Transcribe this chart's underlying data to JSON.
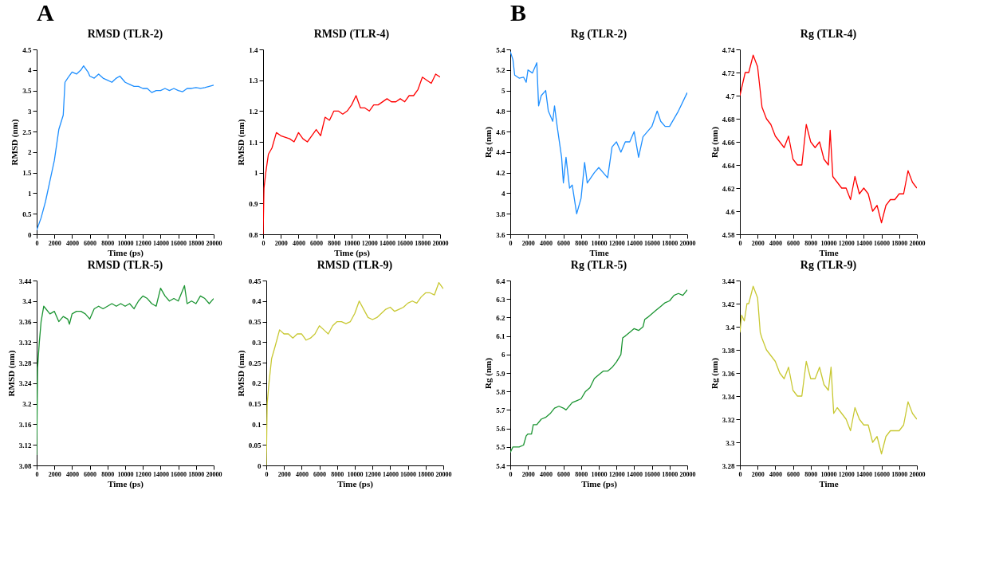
{
  "chart_data": [
    {
      "type": "line",
      "title": "RMSD (TLR-2)",
      "xlabel": "Time (ps)",
      "ylabel": "RMSD (nm)",
      "annotations": [
        "A"
      ],
      "grid": false,
      "xlim": [
        0,
        20000
      ],
      "xticks": [
        0,
        2000,
        4000,
        6000,
        8000,
        10000,
        12000,
        14000,
        16000,
        18000,
        20000
      ],
      "ylim": [
        0,
        4.5
      ],
      "yticks": [
        0,
        0.5,
        1,
        1.5,
        2,
        2.5,
        3,
        3.5,
        4,
        4.5
      ],
      "x": [
        0,
        500,
        1000,
        1500,
        2000,
        2500,
        3000,
        3200,
        3500,
        4000,
        4500,
        5000,
        5300,
        5800,
        6000,
        6500,
        7000,
        7500,
        8000,
        8500,
        9000,
        9400,
        10000,
        10500,
        11000,
        11500,
        12000,
        12500,
        13000,
        13500,
        14000,
        14500,
        15000,
        15500,
        16000,
        16500,
        17000,
        17500,
        18000,
        18500,
        19000,
        19500,
        20000
      ],
      "series": [
        {
          "color": "#1e8fff",
          "values": [
            0.1,
            0.4,
            0.8,
            1.3,
            1.8,
            2.55,
            2.9,
            3.7,
            3.8,
            3.95,
            3.9,
            4.0,
            4.1,
            3.95,
            3.85,
            3.8,
            3.9,
            3.8,
            3.75,
            3.7,
            3.8,
            3.85,
            3.7,
            3.65,
            3.6,
            3.6,
            3.55,
            3.55,
            3.45,
            3.5,
            3.5,
            3.55,
            3.5,
            3.55,
            3.5,
            3.47,
            3.55,
            3.55,
            3.57,
            3.55,
            3.57,
            3.6,
            3.63
          ]
        }
      ]
    },
    {
      "type": "line",
      "title": "RMSD (TLR-4)",
      "xlabel": "Time (ps)",
      "ylabel": "RMSD (nm)",
      "grid": false,
      "xlim": [
        0,
        20000
      ],
      "xticks": [
        0,
        2000,
        4000,
        6000,
        8000,
        10000,
        12000,
        14000,
        16000,
        18000,
        20000
      ],
      "ylim": [
        0.8,
        1.4
      ],
      "yticks": [
        0.8,
        0.9,
        1,
        1.1,
        1.2,
        1.3,
        1.4
      ],
      "x": [
        0,
        100,
        300,
        600,
        1000,
        1500,
        2000,
        3000,
        3500,
        4000,
        4500,
        5000,
        5500,
        6000,
        6500,
        7000,
        7500,
        8000,
        8500,
        9000,
        9500,
        10000,
        10500,
        11000,
        11500,
        12000,
        12500,
        13000,
        14000,
        14500,
        15000,
        15500,
        16000,
        16500,
        17000,
        17500,
        18000,
        18500,
        19000,
        19500,
        20000
      ],
      "series": [
        {
          "color": "#ff0000",
          "values": [
            0.8,
            0.95,
            1.0,
            1.06,
            1.08,
            1.13,
            1.12,
            1.11,
            1.1,
            1.13,
            1.11,
            1.1,
            1.12,
            1.14,
            1.12,
            1.18,
            1.17,
            1.2,
            1.2,
            1.19,
            1.2,
            1.22,
            1.25,
            1.21,
            1.21,
            1.2,
            1.22,
            1.22,
            1.24,
            1.23,
            1.23,
            1.24,
            1.23,
            1.25,
            1.25,
            1.27,
            1.31,
            1.3,
            1.29,
            1.32,
            1.31
          ]
        }
      ]
    },
    {
      "type": "line",
      "title": "Rg (TLR-2)",
      "xlabel": "Time",
      "ylabel": "Rg (nm)",
      "annotations": [
        "B"
      ],
      "grid": false,
      "xlim": [
        0,
        20000
      ],
      "xticks": [
        0,
        2000,
        4000,
        6000,
        8000,
        10000,
        12000,
        14000,
        16000,
        18000,
        20000
      ],
      "ylim": [
        3.6,
        5.4
      ],
      "yticks": [
        3.6,
        3.8,
        4,
        4.2,
        4.4,
        4.6,
        4.8,
        5,
        5.2,
        5.4
      ],
      "x": [
        0,
        300,
        500,
        1000,
        1500,
        1800,
        2000,
        2500,
        3000,
        3200,
        3500,
        4000,
        4300,
        4800,
        5000,
        5300,
        5800,
        6000,
        6300,
        6700,
        7000,
        7500,
        8000,
        8400,
        8700,
        9500,
        10000,
        10500,
        11000,
        11500,
        12000,
        12500,
        13000,
        13500,
        14000,
        14500,
        15000,
        16000,
        16600,
        17000,
        17500,
        18000,
        19000,
        20000
      ],
      "series": [
        {
          "color": "#1e8fff",
          "values": [
            5.38,
            5.3,
            5.15,
            5.12,
            5.13,
            5.08,
            5.2,
            5.17,
            5.27,
            4.85,
            4.95,
            5.0,
            4.8,
            4.7,
            4.85,
            4.65,
            4.35,
            4.1,
            4.35,
            4.05,
            4.08,
            3.8,
            3.95,
            4.3,
            4.1,
            4.2,
            4.25,
            4.2,
            4.15,
            4.45,
            4.5,
            4.4,
            4.5,
            4.5,
            4.6,
            4.35,
            4.55,
            4.65,
            4.8,
            4.7,
            4.65,
            4.65,
            4.8,
            4.98
          ]
        }
      ]
    },
    {
      "type": "line",
      "title": "Rg (TLR-4)",
      "xlabel": "Time",
      "ylabel": "Rg (nm)",
      "grid": false,
      "xlim": [
        0,
        20000
      ],
      "xticks": [
        0,
        2000,
        4000,
        6000,
        8000,
        10000,
        12000,
        14000,
        16000,
        18000,
        20000
      ],
      "ylim": [
        4.58,
        4.74
      ],
      "yticks": [
        4.58,
        4.6,
        4.62,
        4.64,
        4.66,
        4.68,
        4.7,
        4.72,
        4.74
      ],
      "x": [
        0,
        300,
        600,
        1000,
        1500,
        2000,
        2500,
        3000,
        3500,
        4000,
        4500,
        5000,
        5500,
        6000,
        6500,
        7000,
        7500,
        8000,
        8500,
        9000,
        9500,
        10000,
        10200,
        10500,
        11000,
        11500,
        12000,
        12500,
        13000,
        13500,
        14000,
        14500,
        15000,
        15500,
        16000,
        16500,
        17000,
        17500,
        18000,
        18500,
        19000,
        19500,
        20000
      ],
      "series": [
        {
          "color": "#ff0000",
          "values": [
            4.7,
            4.71,
            4.72,
            4.72,
            4.735,
            4.725,
            4.69,
            4.68,
            4.675,
            4.665,
            4.66,
            4.655,
            4.665,
            4.645,
            4.64,
            4.64,
            4.675,
            4.66,
            4.655,
            4.66,
            4.645,
            4.64,
            4.67,
            4.63,
            4.625,
            4.62,
            4.62,
            4.61,
            4.63,
            4.615,
            4.62,
            4.615,
            4.6,
            4.605,
            4.59,
            4.605,
            4.61,
            4.61,
            4.615,
            4.615,
            4.635,
            4.625,
            4.62
          ]
        }
      ]
    },
    {
      "type": "line",
      "title": "RMSD (TLR-5)",
      "xlabel": "Time (ps)",
      "ylabel": "RMSD (nm)",
      "grid": false,
      "xlim": [
        0,
        20000
      ],
      "xticks": [
        0,
        2000,
        4000,
        6000,
        8000,
        10000,
        12000,
        14000,
        16000,
        18000,
        20000
      ],
      "ylim": [
        3.08,
        3.44
      ],
      "yticks": [
        3.08,
        3.12,
        3.16,
        3.2,
        3.24,
        3.28,
        3.32,
        3.36,
        3.4,
        3.44
      ],
      "x": [
        0,
        100,
        300,
        500,
        800,
        1500,
        2000,
        2500,
        3000,
        3500,
        3700,
        4000,
        4500,
        5000,
        5500,
        6000,
        6500,
        7000,
        7500,
        8000,
        8500,
        9000,
        9500,
        10000,
        10500,
        11000,
        11500,
        12000,
        12500,
        13000,
        13500,
        14000,
        14500,
        15000,
        15500,
        16000,
        16700,
        17000,
        17500,
        18000,
        18500,
        19000,
        19500,
        20000
      ],
      "series": [
        {
          "color": "#1a9431",
          "values": [
            3.1,
            3.27,
            3.32,
            3.36,
            3.39,
            3.375,
            3.38,
            3.36,
            3.37,
            3.365,
            3.355,
            3.375,
            3.38,
            3.38,
            3.375,
            3.365,
            3.385,
            3.39,
            3.385,
            3.39,
            3.395,
            3.39,
            3.395,
            3.39,
            3.395,
            3.385,
            3.4,
            3.41,
            3.405,
            3.395,
            3.39,
            3.425,
            3.41,
            3.4,
            3.405,
            3.4,
            3.43,
            3.395,
            3.4,
            3.395,
            3.41,
            3.405,
            3.395,
            3.405
          ]
        }
      ]
    },
    {
      "type": "line",
      "title": "RMSD (TLR-9)",
      "xlabel": "Time (ps)",
      "ylabel": "RMSD (nm)",
      "grid": false,
      "xlim": [
        0,
        20000
      ],
      "xticks": [
        0,
        2000,
        4000,
        6000,
        8000,
        10000,
        12000,
        14000,
        16000,
        18000,
        20000
      ],
      "ylim": [
        0,
        0.45
      ],
      "yticks": [
        0,
        0.05,
        0.1,
        0.15,
        0.2,
        0.25,
        0.3,
        0.35,
        0.4,
        0.45
      ],
      "x": [
        0,
        100,
        300,
        600,
        1000,
        1500,
        2000,
        2500,
        3000,
        3500,
        4000,
        4500,
        5000,
        5500,
        6000,
        6500,
        7000,
        7500,
        8000,
        8500,
        9000,
        9500,
        10000,
        10500,
        11000,
        11500,
        12000,
        12500,
        13000,
        13500,
        14000,
        14500,
        15000,
        15500,
        16000,
        16500,
        17000,
        17500,
        18000,
        18500,
        19000,
        19500,
        20000
      ],
      "series": [
        {
          "color": "#c8c832",
          "values": [
            0,
            0.15,
            0.2,
            0.26,
            0.29,
            0.33,
            0.32,
            0.32,
            0.31,
            0.32,
            0.32,
            0.305,
            0.31,
            0.32,
            0.34,
            0.33,
            0.32,
            0.34,
            0.35,
            0.35,
            0.345,
            0.35,
            0.37,
            0.4,
            0.38,
            0.36,
            0.355,
            0.36,
            0.37,
            0.38,
            0.385,
            0.375,
            0.38,
            0.385,
            0.395,
            0.4,
            0.395,
            0.41,
            0.42,
            0.42,
            0.415,
            0.445,
            0.43
          ]
        }
      ]
    },
    {
      "type": "line",
      "title": "Rg (TLR-5)",
      "xlabel": "Time (ps)",
      "ylabel": "Rg (nm)",
      "grid": false,
      "xlim": [
        0,
        20000
      ],
      "xticks": [
        0,
        2000,
        4000,
        6000,
        8000,
        10000,
        12000,
        14000,
        16000,
        18000,
        20000
      ],
      "ylim": [
        5.4,
        6.4
      ],
      "yticks": [
        5.4,
        5.5,
        5.6,
        5.7,
        5.8,
        5.9,
        6,
        6.1,
        6.2,
        6.3,
        6.4
      ],
      "x": [
        0,
        300,
        1000,
        1500,
        1800,
        2000,
        2400,
        2600,
        3000,
        3500,
        4000,
        4500,
        5000,
        5500,
        6000,
        6300,
        7000,
        7500,
        8000,
        8500,
        9000,
        9500,
        10000,
        10500,
        11000,
        11500,
        12000,
        12500,
        12700,
        13000,
        13500,
        14000,
        14500,
        15000,
        15200,
        15500,
        16000,
        16500,
        17000,
        17500,
        18000,
        18500,
        19000,
        19500,
        20000
      ],
      "series": [
        {
          "color": "#1a9431",
          "values": [
            5.47,
            5.5,
            5.5,
            5.51,
            5.56,
            5.57,
            5.57,
            5.62,
            5.62,
            5.65,
            5.66,
            5.68,
            5.71,
            5.72,
            5.71,
            5.7,
            5.74,
            5.75,
            5.76,
            5.8,
            5.82,
            5.87,
            5.89,
            5.91,
            5.91,
            5.93,
            5.96,
            6.0,
            6.09,
            6.1,
            6.12,
            6.14,
            6.13,
            6.15,
            6.19,
            6.2,
            6.22,
            6.24,
            6.26,
            6.28,
            6.29,
            6.32,
            6.33,
            6.32,
            6.35
          ]
        }
      ]
    },
    {
      "type": "line",
      "title": "Rg (TLR-9)",
      "xlabel": "Time",
      "ylabel": "Rg (nm)",
      "grid": false,
      "xlim": [
        0,
        20000
      ],
      "xticks": [
        0,
        2000,
        4000,
        6000,
        8000,
        10000,
        12000,
        14000,
        16000,
        18000,
        20000
      ],
      "ylim": [
        3.28,
        3.44
      ],
      "yticks": [
        3.28,
        3.3,
        3.32,
        3.34,
        3.36,
        3.38,
        3.4,
        3.42,
        3.44
      ],
      "x": [
        0,
        200,
        500,
        800,
        1000,
        1500,
        2000,
        2300,
        2500,
        3000,
        3500,
        4000,
        4500,
        5000,
        5500,
        6000,
        6500,
        7000,
        7500,
        8000,
        8500,
        9000,
        9500,
        10000,
        10300,
        10600,
        11000,
        11500,
        12000,
        12500,
        13000,
        13500,
        14000,
        14500,
        15000,
        15500,
        16000,
        16500,
        17000,
        17500,
        18000,
        18500,
        19000,
        19500,
        20000
      ],
      "series": [
        {
          "color": "#c8c832",
          "values": [
            3.395,
            3.41,
            3.405,
            3.42,
            3.42,
            3.435,
            3.425,
            3.395,
            3.39,
            3.38,
            3.375,
            3.37,
            3.36,
            3.355,
            3.365,
            3.345,
            3.34,
            3.34,
            3.37,
            3.355,
            3.355,
            3.365,
            3.35,
            3.345,
            3.365,
            3.325,
            3.33,
            3.325,
            3.32,
            3.31,
            3.33,
            3.32,
            3.315,
            3.315,
            3.3,
            3.305,
            3.29,
            3.305,
            3.31,
            3.31,
            3.31,
            3.315,
            3.335,
            3.325,
            3.32
          ]
        }
      ]
    }
  ]
}
